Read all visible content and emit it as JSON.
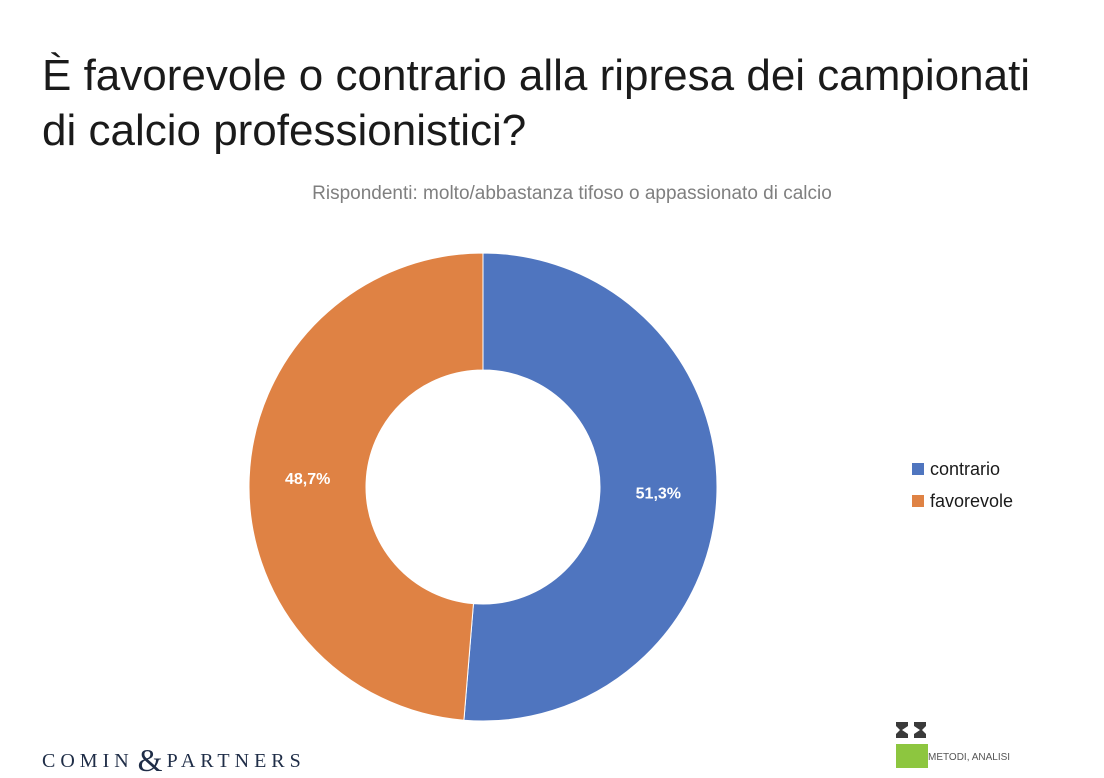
{
  "title": "È favorevole o contrario alla ripresa dei campionati di calcio professionistici?",
  "subtitle": "Rispondenti: molto/abbastanza tifoso o appassionato di calcio",
  "chart_data": {
    "type": "pie",
    "donut": true,
    "title": "",
    "categories": [
      "contrario",
      "favorevole"
    ],
    "values": [
      51.3,
      48.7
    ],
    "labels": [
      "51,3%",
      "48,7%"
    ],
    "colors": [
      "#4f75bf",
      "#df8244"
    ],
    "legend_position": "right"
  },
  "footer": {
    "left_brand_part1": "COMIN",
    "left_brand_amp": "&",
    "left_brand_part2": "PARTNERS",
    "right_brand_text": "METODI, ANALISI",
    "right_brand_letters": "IZI",
    "right_brand_colors": [
      "#3a3a3a",
      "#8dc63f"
    ]
  }
}
